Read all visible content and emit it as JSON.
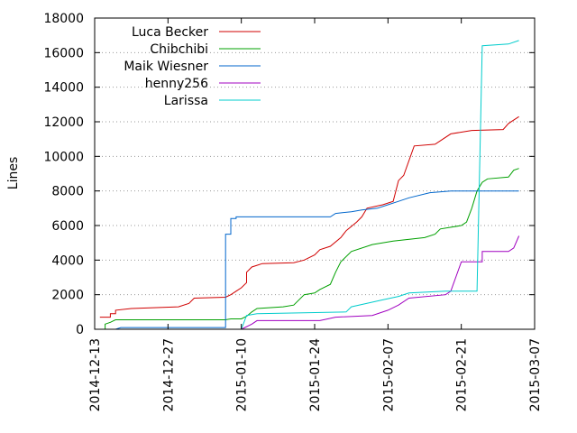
{
  "chart_data": {
    "type": "line",
    "title": "",
    "xlabel": "",
    "ylabel": "Lines",
    "x_ticks": [
      "2014-12-13",
      "2014-12-27",
      "2015-01-10",
      "2015-01-24",
      "2015-02-07",
      "2015-02-21",
      "2015-03-07"
    ],
    "xlim": [
      "2014-12-13",
      "2015-03-07"
    ],
    "ylim": [
      0,
      18000
    ],
    "y_ticks": [
      0,
      2000,
      4000,
      6000,
      8000,
      10000,
      12000,
      14000,
      16000,
      18000
    ],
    "grid": "horizontal dotted",
    "legend_position": "top-left",
    "series": [
      {
        "name": "Luca Becker",
        "color": "#d00000",
        "points": [
          [
            "2014-12-14",
            700
          ],
          [
            "2014-12-16",
            700
          ],
          [
            "2014-12-16",
            900
          ],
          [
            "2014-12-17",
            900
          ],
          [
            "2014-12-17",
            1100
          ],
          [
            "2014-12-20",
            1200
          ],
          [
            "2014-12-29",
            1300
          ],
          [
            "2014-12-31",
            1500
          ],
          [
            "2015-01-01",
            1800
          ],
          [
            "2015-01-07",
            1850
          ],
          [
            "2015-01-08",
            2000
          ],
          [
            "2015-01-09",
            2200
          ],
          [
            "2015-01-10",
            2400
          ],
          [
            "2015-01-11",
            2700
          ],
          [
            "2015-01-11",
            3300
          ],
          [
            "2015-01-12",
            3600
          ],
          [
            "2015-01-13",
            3700
          ],
          [
            "2015-01-14",
            3800
          ],
          [
            "2015-01-20",
            3850
          ],
          [
            "2015-01-22",
            4000
          ],
          [
            "2015-01-24",
            4300
          ],
          [
            "2015-01-25",
            4600
          ],
          [
            "2015-01-27",
            4800
          ],
          [
            "2015-01-29",
            5300
          ],
          [
            "2015-01-30",
            5700
          ],
          [
            "2015-02-01",
            6200
          ],
          [
            "2015-02-02",
            6500
          ],
          [
            "2015-02-03",
            7000
          ],
          [
            "2015-02-06",
            7200
          ],
          [
            "2015-02-08",
            7400
          ],
          [
            "2015-02-09",
            8600
          ],
          [
            "2015-02-10",
            8900
          ],
          [
            "2015-02-12",
            10600
          ],
          [
            "2015-02-16",
            10700
          ],
          [
            "2015-02-17",
            10900
          ],
          [
            "2015-02-19",
            11300
          ],
          [
            "2015-02-21",
            11400
          ],
          [
            "2015-02-23",
            11500
          ],
          [
            "2015-03-01",
            11550
          ],
          [
            "2015-03-02",
            11900
          ],
          [
            "2015-03-03",
            12100
          ],
          [
            "2015-03-04",
            12300
          ]
        ]
      },
      {
        "name": "Chibchibi",
        "color": "#00a000",
        "points": [
          [
            "2014-12-14",
            0
          ],
          [
            "2014-12-15",
            0
          ],
          [
            "2014-12-15",
            300
          ],
          [
            "2014-12-16",
            400
          ],
          [
            "2014-12-17",
            550
          ],
          [
            "2015-01-07",
            550
          ],
          [
            "2015-01-08",
            600
          ],
          [
            "2015-01-10",
            600
          ],
          [
            "2015-01-11",
            750
          ],
          [
            "2015-01-12",
            1000
          ],
          [
            "2015-01-13",
            1200
          ],
          [
            "2015-01-18",
            1300
          ],
          [
            "2015-01-20",
            1400
          ],
          [
            "2015-01-22",
            2000
          ],
          [
            "2015-01-24",
            2100
          ],
          [
            "2015-01-25",
            2300
          ],
          [
            "2015-01-27",
            2600
          ],
          [
            "2015-01-28",
            3300
          ],
          [
            "2015-01-29",
            3900
          ],
          [
            "2015-01-31",
            4500
          ],
          [
            "2015-02-04",
            4900
          ],
          [
            "2015-02-08",
            5100
          ],
          [
            "2015-02-14",
            5300
          ],
          [
            "2015-02-16",
            5500
          ],
          [
            "2015-02-17",
            5800
          ],
          [
            "2015-02-21",
            6000
          ],
          [
            "2015-02-22",
            6200
          ],
          [
            "2015-02-23",
            7000
          ],
          [
            "2015-02-24",
            8000
          ],
          [
            "2015-02-25",
            8500
          ],
          [
            "2015-02-26",
            8700
          ],
          [
            "2015-03-02",
            8800
          ],
          [
            "2015-03-03",
            9200
          ],
          [
            "2015-03-04",
            9300
          ]
        ]
      },
      {
        "name": "Maik Wiesner",
        "color": "#0066cc",
        "points": [
          [
            "2014-12-17",
            0
          ],
          [
            "2014-12-18",
            100
          ],
          [
            "2015-01-07",
            100
          ],
          [
            "2015-01-07",
            5500
          ],
          [
            "2015-01-08",
            5500
          ],
          [
            "2015-01-08",
            6400
          ],
          [
            "2015-01-09",
            6400
          ],
          [
            "2015-01-09",
            6500
          ],
          [
            "2015-01-27",
            6500
          ],
          [
            "2015-01-28",
            6700
          ],
          [
            "2015-01-31",
            6800
          ],
          [
            "2015-02-02",
            6900
          ],
          [
            "2015-02-05",
            7000
          ],
          [
            "2015-02-07",
            7200
          ],
          [
            "2015-02-09",
            7400
          ],
          [
            "2015-02-11",
            7600
          ],
          [
            "2015-02-15",
            7900
          ],
          [
            "2015-02-19",
            8000
          ],
          [
            "2015-03-04",
            8000
          ]
        ]
      },
      {
        "name": "henny256",
        "color": "#a000c0",
        "points": [
          [
            "2015-01-10",
            0
          ],
          [
            "2015-01-12",
            300
          ],
          [
            "2015-01-13",
            500
          ],
          [
            "2015-01-25",
            500
          ],
          [
            "2015-01-28",
            700
          ],
          [
            "2015-02-04",
            800
          ],
          [
            "2015-02-07",
            1100
          ],
          [
            "2015-02-09",
            1400
          ],
          [
            "2015-02-11",
            1800
          ],
          [
            "2015-02-18",
            2000
          ],
          [
            "2015-02-19",
            2200
          ],
          [
            "2015-02-21",
            3900
          ],
          [
            "2015-02-25",
            3900
          ],
          [
            "2015-02-25",
            4500
          ],
          [
            "2015-03-02",
            4500
          ],
          [
            "2015-03-03",
            4700
          ],
          [
            "2015-03-04",
            5400
          ]
        ]
      },
      {
        "name": "Larissa",
        "color": "#00cccc",
        "points": [
          [
            "2015-01-10",
            0
          ],
          [
            "2015-01-11",
            800
          ],
          [
            "2015-01-13",
            900
          ],
          [
            "2015-01-30",
            1000
          ],
          [
            "2015-01-31",
            1300
          ],
          [
            "2015-02-03",
            1500
          ],
          [
            "2015-02-06",
            1700
          ],
          [
            "2015-02-09",
            1900
          ],
          [
            "2015-02-11",
            2100
          ],
          [
            "2015-02-18",
            2200
          ],
          [
            "2015-02-24",
            2200
          ],
          [
            "2015-02-25",
            16400
          ],
          [
            "2015-03-02",
            16500
          ],
          [
            "2015-03-04",
            16700
          ]
        ]
      }
    ]
  }
}
